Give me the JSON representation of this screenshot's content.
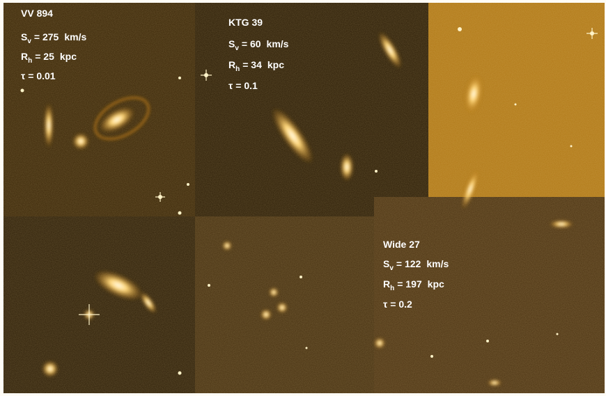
{
  "panels": [
    {
      "name": "VV 894",
      "lines": [
        {
          "symbol": "S",
          "sub": "v",
          "value": "= 275",
          "unit": "km/s"
        },
        {
          "symbol": "R",
          "sub": "h",
          "value": "= 25",
          "unit": "kpc"
        },
        {
          "symbol": "τ",
          "value": "= 0.01"
        }
      ]
    },
    {
      "name": "KTG 39",
      "lines": [
        {
          "symbol": "S",
          "sub": "v",
          "value": "= 60",
          "unit": "km/s"
        },
        {
          "symbol": "R",
          "sub": "h",
          "value": "= 34",
          "unit": "kpc"
        },
        {
          "symbol": "τ",
          "value": "= 0.1"
        }
      ]
    },
    {
      "name": "Wide  27",
      "lines": [
        {
          "symbol": "S",
          "sub": "v",
          "value": "= 122",
          "unit": "km/s"
        },
        {
          "symbol": "R",
          "sub": "h",
          "value": "= 197",
          "unit": "kpc"
        },
        {
          "symbol": "τ",
          "value": "= 0.2"
        }
      ]
    }
  ]
}
